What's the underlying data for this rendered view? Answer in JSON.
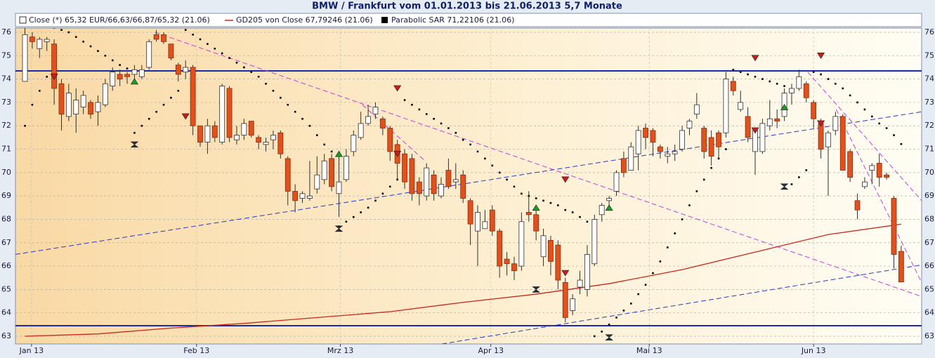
{
  "chart_data": {
    "type": "candlestick",
    "title": "BMW / Frankfurt vom 01.01.2013 bis 21.06.2013 5,7 Monate",
    "xlim": [
      -1.3,
      122.8
    ],
    "ylim": [
      62.67,
      76.18
    ],
    "xticks": [
      {
        "value": 0.9,
        "label": "Jan 13"
      },
      {
        "value": 23.5,
        "label": "Feb 13"
      },
      {
        "value": 43.2,
        "label": "Mrz 13"
      },
      {
        "value": 63.8,
        "label": "Apr 13"
      },
      {
        "value": 85.5,
        "label": "Mai 13"
      },
      {
        "value": 108,
        "label": "Jun 13"
      }
    ],
    "yticks": [
      63,
      64,
      65,
      66,
      67,
      68,
      69,
      70,
      71,
      72,
      73,
      74,
      75,
      76
    ],
    "grid": true,
    "series": [
      {
        "name": "Close (*) 65,32 EUR/66,63/66,87/65,32 (21.06)",
        "up_color": "#ffffff",
        "down_color": "#e2501c",
        "open": [
          73.9,
          75.8,
          75.3,
          75.6,
          75.5,
          73.8,
          72.4,
          72.5,
          72.8,
          73.0,
          72.6,
          72.9,
          73.7,
          74.2,
          74.2,
          74.2,
          74.1,
          74.5,
          75.9,
          75.9,
          75.5,
          74.6,
          74.3,
          74.5,
          72.0,
          71.3,
          72.0,
          71.3,
          73.6,
          71.4,
          71.6,
          72.2,
          71.5,
          71.2,
          71.4,
          71.7,
          70.6,
          69.2,
          68.9,
          68.9,
          69.3,
          69.7,
          70.6,
          69.1,
          69.7,
          70.9,
          71.5,
          72.1,
          72.5,
          72.3,
          71.9,
          71.2,
          70.8,
          70.6,
          69.6,
          69.0,
          69.9,
          69.0,
          70.1,
          69.6,
          69.9,
          68.8,
          67.5,
          67.6,
          68.4,
          67.5,
          66.3,
          66.1,
          66.0,
          68.3,
          68.2,
          66.4,
          67.1,
          66.9,
          65.3,
          64.1,
          65.1,
          65.0,
          66.1,
          68.2,
          68.8,
          69.2,
          70.6,
          70.1,
          70.8,
          71.9,
          71.8,
          71.1,
          70.7,
          70.8,
          71.0,
          71.9,
          72.5,
          71.9,
          71.5,
          71.7,
          71.7,
          73.9,
          72.7,
          72.4,
          70.9,
          70.9,
          72.0,
          72.3,
          72.4,
          73.4,
          73.6,
          73.8,
          73.0,
          72.1,
          71.1,
          71.8,
          72.4,
          70.9,
          68.8,
          69.4,
          70.1,
          70.4,
          69.9,
          68.9,
          66.63
        ],
        "high": [
          76.2,
          76.0,
          75.8,
          75.8,
          75.7,
          74.0,
          73.8,
          73.6,
          73.5,
          73.1,
          73.3,
          74.0,
          74.5,
          74.4,
          74.3,
          74.6,
          74.6,
          75.7,
          76.1,
          76.0,
          75.5,
          74.7,
          74.8,
          74.6,
          72.0,
          72.3,
          72.2,
          73.8,
          73.7,
          72.0,
          72.3,
          72.2,
          71.6,
          71.5,
          71.8,
          71.8,
          70.7,
          69.5,
          69.2,
          70.5,
          70.7,
          70.8,
          70.8,
          70.8,
          71.0,
          71.8,
          72.6,
          72.9,
          73.0,
          72.4,
          72.0,
          71.4,
          71.0,
          70.8,
          69.8,
          70.4,
          70.1,
          69.8,
          70.6,
          70.4,
          70.1,
          68.9,
          68.6,
          68.4,
          68.6,
          67.6,
          66.6,
          66.4,
          68.3,
          69.2,
          68.4,
          67.6,
          67.3,
          67.1,
          65.5,
          64.8,
          65.8,
          66.9,
          68.2,
          68.7,
          69.0,
          70.1,
          70.9,
          71.3,
          72.0,
          72.1,
          71.9,
          71.2,
          71.1,
          71.2,
          72.0,
          72.3,
          73.4,
          72.0,
          71.8,
          71.8,
          74.3,
          74.1,
          73.5,
          72.8,
          71.9,
          72.3,
          73.1,
          72.7,
          73.6,
          73.8,
          74.4,
          73.9,
          73.1,
          72.3,
          71.8,
          72.6,
          72.5,
          71.0,
          69.1,
          69.8,
          70.4,
          70.8,
          70.0,
          69.0,
          66.87
        ],
        "low": [
          73.9,
          75.3,
          74.9,
          75.2,
          72.9,
          71.8,
          72.2,
          71.7,
          72.5,
          72.3,
          72.0,
          72.8,
          73.5,
          73.7,
          73.8,
          73.8,
          74.0,
          74.4,
          75.6,
          75.5,
          74.8,
          73.9,
          74.0,
          71.6,
          71.1,
          70.8,
          71.3,
          71.2,
          71.3,
          71.2,
          71.4,
          71.5,
          71.0,
          70.9,
          71.0,
          70.6,
          68.6,
          68.3,
          68.7,
          68.8,
          69.1,
          69.5,
          69.2,
          68.1,
          69.6,
          70.7,
          71.4,
          72.0,
          72.3,
          71.6,
          70.5,
          69.7,
          69.3,
          68.8,
          68.6,
          68.8,
          68.8,
          68.9,
          69.3,
          69.3,
          68.7,
          66.9,
          66.0,
          67.6,
          67.3,
          65.5,
          65.6,
          65.4,
          65.8,
          67.9,
          67.1,
          66.0,
          65.6,
          65.0,
          63.6,
          63.9,
          64.8,
          64.7,
          66.0,
          67.9,
          68.5,
          69.0,
          69.8,
          70.1,
          70.1,
          71.0,
          70.7,
          70.6,
          70.4,
          70.5,
          70.9,
          71.6,
          72.3,
          70.6,
          70.3,
          70.6,
          71.5,
          73.3,
          72.6,
          71.3,
          69.9,
          70.8,
          71.8,
          71.9,
          72.2,
          72.9,
          73.5,
          73.0,
          71.9,
          70.6,
          69.0,
          71.6,
          70.1,
          69.6,
          68.0,
          69.3,
          69.5,
          69.4,
          69.7,
          65.9,
          65.32
        ],
        "close": [
          75.9,
          75.6,
          75.7,
          75.7,
          73.6,
          72.5,
          73.4,
          73.1,
          73.3,
          72.5,
          73.0,
          73.8,
          74.3,
          74.0,
          74.1,
          74.4,
          74.4,
          75.6,
          75.7,
          75.6,
          74.9,
          74.2,
          74.5,
          72.0,
          71.3,
          72.0,
          71.5,
          73.7,
          71.5,
          71.6,
          72.1,
          71.6,
          71.3,
          71.3,
          71.6,
          70.8,
          69.2,
          68.8,
          69.1,
          69.0,
          69.9,
          70.5,
          69.4,
          69.6,
          70.7,
          71.6,
          72.1,
          72.4,
          72.8,
          71.9,
          70.9,
          70.4,
          69.6,
          69.1,
          69.1,
          70.2,
          69.1,
          69.5,
          69.4,
          69.7,
          68.9,
          67.8,
          68.3,
          67.9,
          67.5,
          66.0,
          66.1,
          65.8,
          67.9,
          68.2,
          67.5,
          67.3,
          66.2,
          65.4,
          63.8,
          64.6,
          65.4,
          66.5,
          68.0,
          68.6,
          68.9,
          70.0,
          70.0,
          71.1,
          71.8,
          71.5,
          71.3,
          70.9,
          70.8,
          70.9,
          71.8,
          72.2,
          72.9,
          70.9,
          70.7,
          71.1,
          74.0,
          73.5,
          73.0,
          71.5,
          71.8,
          72.1,
          72.3,
          72.2,
          73.4,
          73.6,
          74.1,
          73.2,
          72.3,
          71.0,
          71.7,
          72.4,
          70.1,
          69.8,
          68.4,
          69.6,
          70.3,
          69.8,
          69.8,
          66.5,
          65.32
        ]
      }
    ],
    "overlays": [
      {
        "type": "line",
        "name": "GD205 von Close 67,79246 (21.06)",
        "color": "#c8281c",
        "x": [
          0,
          10,
          20,
          30,
          40,
          50,
          60,
          70,
          80,
          90,
          100,
          110,
          120
        ],
        "values": [
          63.0,
          63.1,
          63.35,
          63.55,
          63.8,
          64.05,
          64.45,
          64.8,
          65.25,
          65.85,
          66.6,
          67.35,
          67.79246
        ]
      },
      {
        "type": "dots",
        "name": "Parabolic SAR 71,22106 (21.06)",
        "color": "#000000",
        "values": [
          72.0,
          72.9,
          73.5,
          74.1,
          76.2,
          76.1,
          76.0,
          75.8,
          75.6,
          75.4,
          75.2,
          75.0,
          74.8,
          74.6,
          74.45,
          71.7,
          72.0,
          72.3,
          72.6,
          72.9,
          73.2,
          73.5,
          76.1,
          75.9,
          75.7,
          75.5,
          75.3,
          75.1,
          74.9,
          74.7,
          74.5,
          74.3,
          74.1,
          73.8,
          73.5,
          73.2,
          72.9,
          72.6,
          72.3,
          72.0,
          71.6,
          71.2,
          70.9,
          67.7,
          67.9,
          68.1,
          68.3,
          68.5,
          68.8,
          69.1,
          69.4,
          69.7,
          73.1,
          72.9,
          72.7,
          72.5,
          72.3,
          72.1,
          71.9,
          71.7,
          71.4,
          71.2,
          70.9,
          70.6,
          70.3,
          70.0,
          69.7,
          69.4,
          69.1,
          69.0,
          68.9,
          68.8,
          68.7,
          68.6,
          68.4,
          68.3,
          68.1,
          67.9,
          63.0,
          63.2,
          63.5,
          63.8,
          64.1,
          64.4,
          64.8,
          65.2,
          65.7,
          66.2,
          66.8,
          67.4,
          68.0,
          68.6,
          69.2,
          69.7,
          70.2,
          70.6,
          71.0,
          74.4,
          74.3,
          74.2,
          74.1,
          74.0,
          73.9,
          73.8,
          73.7,
          69.5,
          69.8,
          70.1,
          74.3,
          74.2,
          74.0,
          73.8,
          73.6,
          73.3,
          73.0,
          72.7,
          72.4,
          72.1,
          71.9,
          71.6,
          71.22106
        ]
      }
    ],
    "signals": [
      {
        "x": 15,
        "value": 73.9,
        "kind": "up",
        "color": "#1c9a2a"
      },
      {
        "x": 43,
        "value": 70.8,
        "kind": "up",
        "color": "#1c9a2a"
      },
      {
        "x": 70,
        "value": 68.5,
        "kind": "up",
        "color": "#1c9a2a"
      },
      {
        "x": 80,
        "value": 68.5,
        "kind": "up",
        "color": "#1c9a2a"
      },
      {
        "x": 104,
        "value": 72.8,
        "kind": "up",
        "color": "#1c9a2a"
      },
      {
        "x": 4,
        "value": 74.1,
        "kind": "down",
        "color": "#c81c1c"
      },
      {
        "x": 22,
        "value": 72.4,
        "kind": "down",
        "color": "#c81c1c"
      },
      {
        "x": 51,
        "value": 73.6,
        "kind": "down",
        "color": "#c81c1c"
      },
      {
        "x": 51,
        "value": 70.8,
        "kind": "down",
        "color": "#c81c1c"
      },
      {
        "x": 74,
        "value": 69.7,
        "kind": "down",
        "color": "#c81c1c"
      },
      {
        "x": 74,
        "value": 65.7,
        "kind": "down",
        "color": "#c81c1c"
      },
      {
        "x": 100,
        "value": 74.9,
        "kind": "down",
        "color": "#c81c1c"
      },
      {
        "x": 100,
        "value": 71.8,
        "kind": "down",
        "color": "#c81c1c"
      },
      {
        "x": 109,
        "value": 75.0,
        "kind": "down",
        "color": "#c81c1c"
      },
      {
        "x": 109,
        "value": 72.1,
        "kind": "down",
        "color": "#c81c1c"
      },
      {
        "x": 15,
        "value": 71.2,
        "kind": "both",
        "color": "#203040"
      },
      {
        "x": 43,
        "value": 67.6,
        "kind": "both",
        "color": "#203040"
      },
      {
        "x": 70,
        "value": 65.0,
        "kind": "both",
        "color": "#203040"
      },
      {
        "x": 80,
        "value": 62.95,
        "kind": "both",
        "color": "#203040"
      },
      {
        "x": 104,
        "value": 69.4,
        "kind": "both",
        "color": "#203040"
      }
    ],
    "lines": [
      {
        "color": "#1a2aa8",
        "dashed": false,
        "width": 2,
        "points": [
          [
            -1.3,
            74.35
          ],
          [
            122.8,
            74.35
          ]
        ]
      },
      {
        "color": "#1a2aa8",
        "dashed": false,
        "width": 2,
        "points": [
          [
            -1.3,
            63.45
          ],
          [
            122.8,
            63.45
          ]
        ]
      },
      {
        "color": "#2838c8",
        "dashed": true,
        "width": 1,
        "points": [
          [
            -1.3,
            66.5
          ],
          [
            122.8,
            72.6
          ]
        ]
      },
      {
        "color": "#2838c8",
        "dashed": true,
        "width": 1,
        "points": [
          [
            57.1,
            62.67
          ],
          [
            122.8,
            66.05
          ]
        ]
      },
      {
        "color": "#c040e0",
        "dashed": true,
        "width": 1,
        "points": [
          [
            17.8,
            76.0
          ],
          [
            122.8,
            64.7
          ]
        ]
      },
      {
        "color": "#c040e0",
        "dashed": true,
        "width": 1,
        "points": [
          [
            107.2,
            74.3
          ],
          [
            122.8,
            68.8
          ]
        ]
      },
      {
        "color": "#c040e0",
        "dashed": true,
        "width": 1,
        "points": [
          [
            111.1,
            72.7
          ],
          [
            122.8,
            65.3
          ]
        ]
      },
      {
        "color": "#c040e0",
        "dashed": true,
        "width": 1,
        "points": [
          [
            46.2,
            72.9
          ],
          [
            54.8,
            70.5
          ]
        ]
      }
    ]
  }
}
